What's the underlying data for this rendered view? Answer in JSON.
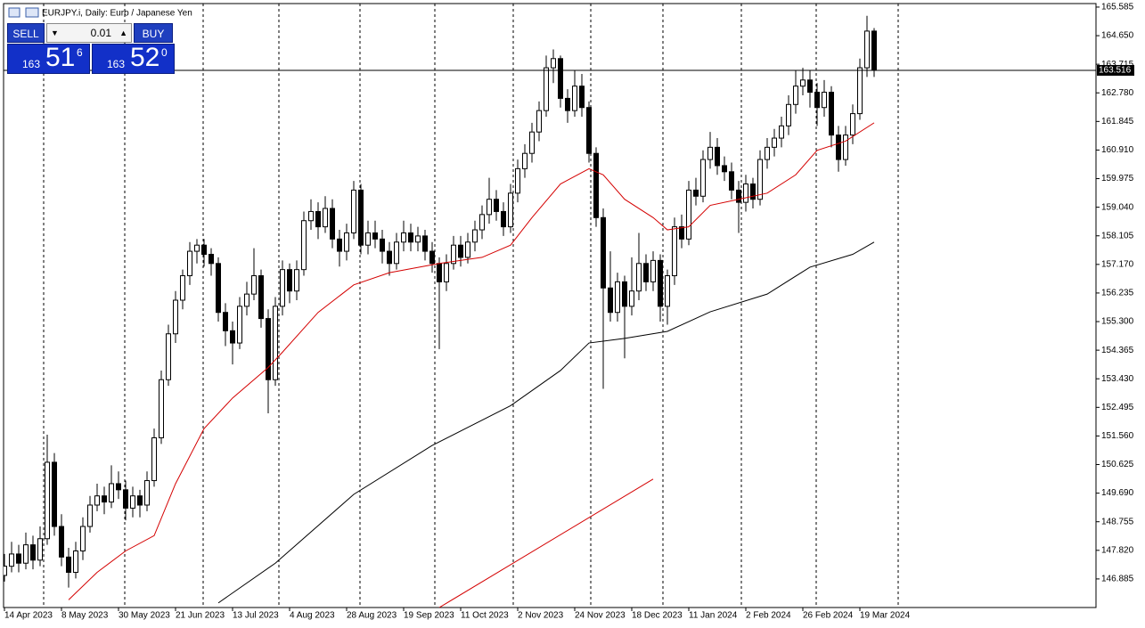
{
  "chart_data": {
    "type": "candlestick",
    "title": "EURJPY.i, Daily:  Euro / Japanese Yen",
    "candles": [
      [
        147.0,
        147.7,
        146.8,
        147.3
      ],
      [
        147.3,
        148.1,
        147.1,
        147.7
      ],
      [
        147.7,
        148.0,
        147.1,
        147.4
      ],
      [
        147.4,
        148.4,
        147.2,
        148.0
      ],
      [
        148.0,
        148.3,
        147.2,
        147.5
      ],
      [
        147.5,
        148.6,
        147.3,
        148.2
      ],
      [
        148.2,
        151.6,
        148.0,
        150.7
      ],
      [
        150.7,
        151.0,
        148.3,
        148.6
      ],
      [
        148.6,
        149.0,
        147.3,
        147.6
      ],
      [
        147.6,
        147.9,
        146.6,
        147.1
      ],
      [
        147.1,
        148.1,
        146.9,
        147.8
      ],
      [
        147.8,
        148.9,
        147.5,
        148.6
      ],
      [
        148.6,
        149.6,
        148.4,
        149.3
      ],
      [
        149.3,
        150.0,
        149.1,
        149.6
      ],
      [
        149.6,
        149.9,
        149.0,
        149.4
      ],
      [
        149.4,
        150.6,
        149.2,
        150.0
      ],
      [
        150.0,
        150.4,
        149.5,
        149.8
      ],
      [
        149.8,
        150.1,
        148.8,
        149.2
      ],
      [
        149.2,
        149.9,
        148.9,
        149.6
      ],
      [
        149.6,
        149.8,
        148.9,
        149.3
      ],
      [
        149.3,
        150.4,
        149.1,
        150.1
      ],
      [
        150.1,
        151.8,
        149.9,
        151.5
      ],
      [
        151.5,
        153.7,
        151.3,
        153.4
      ],
      [
        153.4,
        155.2,
        153.2,
        154.9
      ],
      [
        154.9,
        156.3,
        154.6,
        156.0
      ],
      [
        156.0,
        157.0,
        155.7,
        156.8
      ],
      [
        156.8,
        157.9,
        156.5,
        157.6
      ],
      [
        157.6,
        158.0,
        157.2,
        157.8
      ],
      [
        157.8,
        158.0,
        157.1,
        157.5
      ],
      [
        157.5,
        157.7,
        156.8,
        157.2
      ],
      [
        157.2,
        157.4,
        155.3,
        155.6
      ],
      [
        155.6,
        155.9,
        154.5,
        155.0
      ],
      [
        155.0,
        155.3,
        153.9,
        154.6
      ],
      [
        154.6,
        156.1,
        154.4,
        155.8
      ],
      [
        155.8,
        156.6,
        155.5,
        156.2
      ],
      [
        156.2,
        157.7,
        156.0,
        156.8
      ],
      [
        156.8,
        157.0,
        155.1,
        155.4
      ],
      [
        155.4,
        155.7,
        152.3,
        153.4
      ],
      [
        153.4,
        156.1,
        153.2,
        155.8
      ],
      [
        155.8,
        157.3,
        155.5,
        157.0
      ],
      [
        157.0,
        157.2,
        155.9,
        156.3
      ],
      [
        156.3,
        157.3,
        156.0,
        157.0
      ],
      [
        157.0,
        158.9,
        156.8,
        158.6
      ],
      [
        158.6,
        159.3,
        158.3,
        158.9
      ],
      [
        158.9,
        159.2,
        158.0,
        158.4
      ],
      [
        158.4,
        159.4,
        158.2,
        159.0
      ],
      [
        159.0,
        159.3,
        157.7,
        158.0
      ],
      [
        158.0,
        158.3,
        157.1,
        157.6
      ],
      [
        157.6,
        158.5,
        157.3,
        158.2
      ],
      [
        158.2,
        159.9,
        158.0,
        159.6
      ],
      [
        159.6,
        159.8,
        157.5,
        157.8
      ],
      [
        157.8,
        158.6,
        157.5,
        158.2
      ],
      [
        158.2,
        158.6,
        157.7,
        158.0
      ],
      [
        158.0,
        158.3,
        157.2,
        157.6
      ],
      [
        157.6,
        157.9,
        156.8,
        157.2
      ],
      [
        157.2,
        158.2,
        157.0,
        157.9
      ],
      [
        157.9,
        158.6,
        157.6,
        158.2
      ],
      [
        158.2,
        158.5,
        157.6,
        157.9
      ],
      [
        157.9,
        158.4,
        157.6,
        158.1
      ],
      [
        158.1,
        158.3,
        157.3,
        157.6
      ],
      [
        157.6,
        157.9,
        156.9,
        157.2
      ],
      [
        157.2,
        157.4,
        154.4,
        156.6
      ],
      [
        156.6,
        157.5,
        156.3,
        157.2
      ],
      [
        157.2,
        158.1,
        157.0,
        157.8
      ],
      [
        157.8,
        158.1,
        157.1,
        157.4
      ],
      [
        157.4,
        158.2,
        157.2,
        157.9
      ],
      [
        157.9,
        158.6,
        157.6,
        158.3
      ],
      [
        158.3,
        159.1,
        158.0,
        158.8
      ],
      [
        158.8,
        160.0,
        158.5,
        159.3
      ],
      [
        159.3,
        159.6,
        158.6,
        158.9
      ],
      [
        158.9,
        159.2,
        158.1,
        158.4
      ],
      [
        158.4,
        159.8,
        158.2,
        159.5
      ],
      [
        159.5,
        160.6,
        159.2,
        160.3
      ],
      [
        160.3,
        161.1,
        160.0,
        160.8
      ],
      [
        160.8,
        161.8,
        160.5,
        161.5
      ],
      [
        161.5,
        162.5,
        161.2,
        162.2
      ],
      [
        162.2,
        164.0,
        162.0,
        163.6
      ],
      [
        163.6,
        164.2,
        163.1,
        163.9
      ],
      [
        163.9,
        164.0,
        162.3,
        162.6
      ],
      [
        162.6,
        162.9,
        161.8,
        162.2
      ],
      [
        162.2,
        163.5,
        162.0,
        163.0
      ],
      [
        163.0,
        163.4,
        162.0,
        162.3
      ],
      [
        162.3,
        162.5,
        160.5,
        160.8
      ],
      [
        160.8,
        161.0,
        158.4,
        158.7
      ],
      [
        158.7,
        159.0,
        153.1,
        156.4
      ],
      [
        156.4,
        157.6,
        155.3,
        155.6
      ],
      [
        155.6,
        156.9,
        155.3,
        156.6
      ],
      [
        156.6,
        156.8,
        154.1,
        155.8
      ],
      [
        155.8,
        157.4,
        155.5,
        156.3
      ],
      [
        156.3,
        158.2,
        156.0,
        157.2
      ],
      [
        157.2,
        157.5,
        156.3,
        156.6
      ],
      [
        156.6,
        157.6,
        156.3,
        157.3
      ],
      [
        157.3,
        157.5,
        155.3,
        155.8
      ],
      [
        155.8,
        157.0,
        155.2,
        156.8
      ],
      [
        156.8,
        158.7,
        156.5,
        158.4
      ],
      [
        158.4,
        158.8,
        157.7,
        158.0
      ],
      [
        158.0,
        159.9,
        157.8,
        159.6
      ],
      [
        159.6,
        160.0,
        159.1,
        159.4
      ],
      [
        159.4,
        160.9,
        159.2,
        160.6
      ],
      [
        160.6,
        161.5,
        160.3,
        161.0
      ],
      [
        161.0,
        161.3,
        160.1,
        160.4
      ],
      [
        160.4,
        160.7,
        159.9,
        160.2
      ],
      [
        160.2,
        160.5,
        159.3,
        159.6
      ],
      [
        159.6,
        159.9,
        158.2,
        159.2
      ],
      [
        159.2,
        160.1,
        158.9,
        159.8
      ],
      [
        159.8,
        160.0,
        159.0,
        159.3
      ],
      [
        159.3,
        160.9,
        159.1,
        160.6
      ],
      [
        160.6,
        161.3,
        160.3,
        161.0
      ],
      [
        161.0,
        161.6,
        160.7,
        161.3
      ],
      [
        161.3,
        162.0,
        161.0,
        161.7
      ],
      [
        161.7,
        162.7,
        161.4,
        162.4
      ],
      [
        162.4,
        163.5,
        162.1,
        163.0
      ],
      [
        163.0,
        163.6,
        162.7,
        163.2
      ],
      [
        163.2,
        163.5,
        162.3,
        162.8
      ],
      [
        162.8,
        163.1,
        161.7,
        162.3
      ],
      [
        162.3,
        163.2,
        162.0,
        162.8
      ],
      [
        162.8,
        163.0,
        161.0,
        161.4
      ],
      [
        161.4,
        161.7,
        160.2,
        160.6
      ],
      [
        160.6,
        161.7,
        160.4,
        161.4
      ],
      [
        161.4,
        162.4,
        161.1,
        162.1
      ],
      [
        162.1,
        163.9,
        161.9,
        163.6
      ],
      [
        163.6,
        165.3,
        163.3,
        164.8
      ],
      [
        164.8,
        164.9,
        163.3,
        163.516
      ]
    ],
    "lines": [
      {
        "color": "#d40000",
        "x": [
          9,
          13,
          17,
          21,
          24,
          28,
          32,
          37,
          39,
          44,
          49,
          54,
          61,
          67,
          71,
          74,
          78,
          82,
          84,
          87,
          91,
          93,
          96,
          99,
          103,
          107,
          111,
          114,
          118,
          122
        ],
        "values": [
          146.2,
          147.1,
          147.8,
          148.3,
          150.0,
          151.8,
          152.8,
          153.8,
          154.3,
          155.6,
          156.5,
          156.9,
          157.2,
          157.4,
          157.8,
          158.7,
          159.8,
          160.3,
          160.1,
          159.3,
          158.7,
          158.3,
          158.4,
          159.1,
          159.3,
          159.5,
          160.1,
          160.9,
          161.2,
          161.8
        ]
      },
      {
        "color": "#000000",
        "x": [
          30,
          38,
          49,
          60,
          71,
          78,
          82,
          87,
          93,
          99,
          107,
          113,
          119,
          122
        ],
        "values": [
          146.1,
          147.4,
          149.65,
          151.25,
          152.55,
          153.7,
          154.6,
          154.75,
          154.98,
          155.62,
          156.2,
          157.08,
          157.5,
          157.9
        ]
      },
      {
        "color": "#d40000",
        "x": [
          61,
          91
        ],
        "values": [
          145.95,
          150.15
        ]
      }
    ],
    "last_price": 163.516,
    "xlim": [
      -0.125,
      153.125
    ],
    "ylim": [
      145.95,
      165.7
    ],
    "yticks": [
      146.885,
      {
        "value": 147.82,
        "label": "147.820"
      },
      148.755,
      {
        "value": 149.69,
        "label": "149.690"
      },
      150.625,
      {
        "value": 151.56,
        "label": "151.560"
      },
      152.495,
      {
        "value": 153.43,
        "label": "153.430"
      },
      154.365,
      {
        "value": 155.3,
        "label": "155.300"
      },
      156.235,
      {
        "value": 157.17,
        "label": "157.170"
      },
      158.105,
      {
        "value": 159.04,
        "label": "159.040"
      },
      159.975,
      {
        "value": 160.91,
        "label": "160.910"
      },
      161.845,
      {
        "value": 162.78,
        "label": "162.780"
      },
      163.715,
      {
        "value": 164.65,
        "label": "164.650"
      },
      165.585
    ],
    "xticks": [
      {
        "value": 0,
        "label": "14 Apr 2023"
      },
      {
        "value": 8,
        "label": "8 May 2023"
      },
      {
        "value": 16,
        "label": "30 May 2023"
      },
      {
        "value": 24,
        "label": "21 Jun 2023"
      },
      {
        "value": 32,
        "label": "13 Jul 2023"
      },
      {
        "value": 40,
        "label": "4 Aug 2023"
      },
      {
        "value": 48,
        "label": "28 Aug 2023"
      },
      {
        "value": 56,
        "label": "19 Sep 2023"
      },
      {
        "value": 64,
        "label": "11 Oct 2023"
      },
      {
        "value": 72,
        "label": "2 Nov 2023"
      },
      {
        "value": 80,
        "label": "24 Nov 2023"
      },
      {
        "value": 88,
        "label": "18 Dec 2023"
      },
      {
        "value": 96,
        "label": "11 Jan 2024"
      },
      {
        "value": 104,
        "label": "2 Feb 2024"
      },
      {
        "value": 112,
        "label": "26 Feb 2024"
      },
      {
        "value": 120,
        "label": "19 Mar 2024"
      }
    ],
    "grid": false
  },
  "trade_panel": {
    "sell": "SELL",
    "lot": "0.01",
    "buy": "BUY",
    "bid": {
      "big": "163",
      "main": "51",
      "small": "6"
    },
    "ask": {
      "big": "163",
      "main": "52",
      "small": "0"
    }
  }
}
